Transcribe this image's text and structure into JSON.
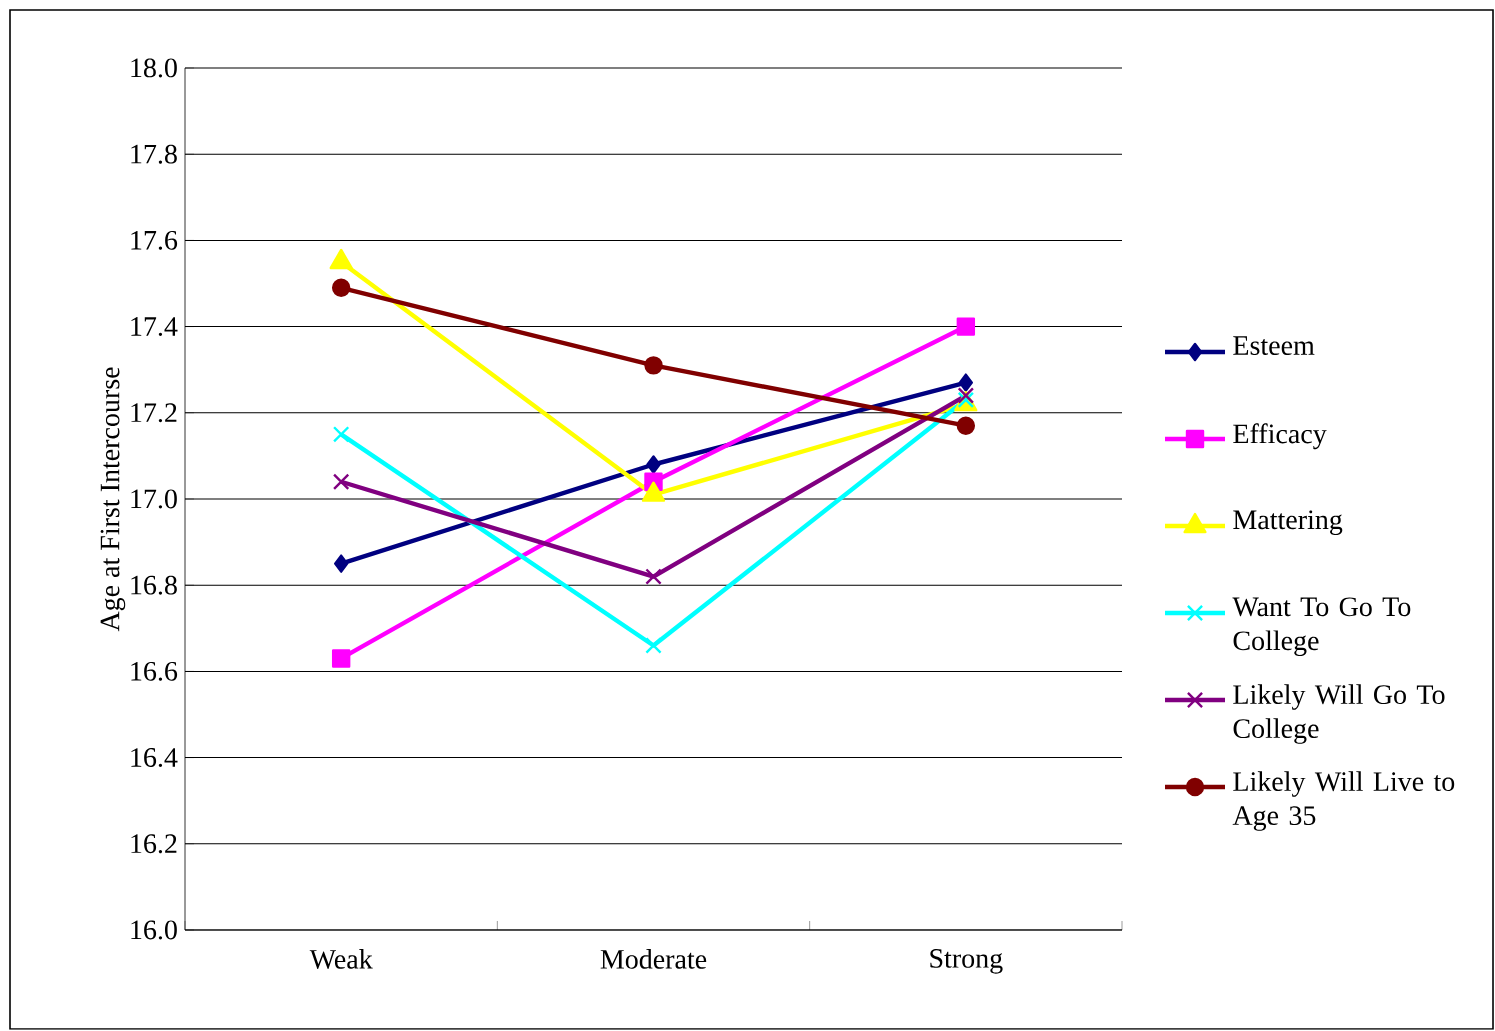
{
  "chart_data": {
    "type": "line",
    "ylabel": "Age at First Intercourse",
    "categories": [
      "Weak",
      "Moderate",
      "Strong"
    ],
    "ylim": [
      16.0,
      18.0
    ],
    "yticks": [
      {
        "value": 16.0,
        "label": "16.0"
      },
      {
        "value": 16.2,
        "label": "16.2"
      },
      {
        "value": 16.4,
        "label": "16.4"
      },
      {
        "value": 16.6,
        "label": "16.6"
      },
      {
        "value": 16.8,
        "label": "16.8"
      },
      {
        "value": 17.0,
        "label": "17.0"
      },
      {
        "value": 17.2,
        "label": "17.2"
      },
      {
        "value": 17.4,
        "label": "17.4"
      },
      {
        "value": 17.6,
        "label": "17.6"
      },
      {
        "value": 17.8,
        "label": "17.8"
      },
      {
        "value": 18.0,
        "label": "18.0"
      }
    ],
    "grid": "y",
    "legend": "right",
    "line_style": "solid",
    "series": [
      {
        "name": "Esteem",
        "color": "#000080",
        "marker": "diamond",
        "values": [
          16.85,
          17.08,
          17.27
        ]
      },
      {
        "name": "Efficacy",
        "color": "#ff00ff",
        "marker": "square",
        "values": [
          16.63,
          17.04,
          17.4
        ]
      },
      {
        "name": "Mattering",
        "color": "#ffff00",
        "marker": "triangle",
        "values": [
          17.55,
          17.01,
          17.22
        ]
      },
      {
        "name": "Want To Go To College",
        "color": "#00ffff",
        "marker": "cross",
        "values": [
          17.15,
          16.66,
          17.23
        ]
      },
      {
        "name": "Likely Will Go To College",
        "color": "#800080",
        "marker": "cross",
        "values": [
          17.04,
          16.82,
          17.24
        ]
      },
      {
        "name": "Likely Will Live to Age 35",
        "color": "#800000",
        "marker": "circle",
        "values": [
          17.49,
          17.31,
          17.17
        ]
      }
    ]
  }
}
